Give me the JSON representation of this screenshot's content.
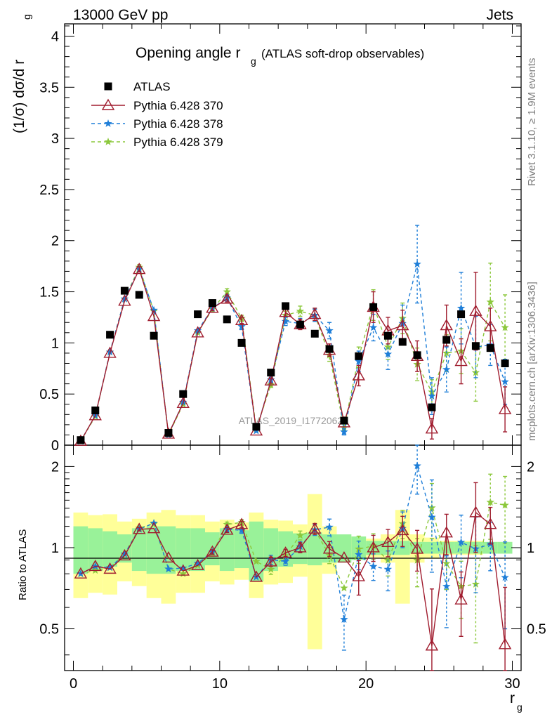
{
  "header": {
    "energy_label": "13000 GeV pp",
    "process_label": "Jets"
  },
  "side_labels": {
    "rivet": "Rivet 3.1.10, ≥ 1.9M events",
    "mcplots": "mcplots.cern.ch [arXiv:1306.3436]"
  },
  "chart_data": {
    "type": "scatter",
    "title": "Opening angle r_g (ATLAS soft-drop observables)",
    "title_main": "Opening angle r",
    "title_sub": "g",
    "title_tail": "(ATLAS soft-drop observables)",
    "watermark": "ATLAS_2019_I1772062",
    "xlabel": "r_g",
    "xlabel_main": "r",
    "xlabel_sub": "g",
    "ylabel_main": "(1/σ) dσ/d r_g",
    "ylabel_main_a": "(1/σ) dσ/d r",
    "ylabel_main_sub": "g",
    "ylabel_ratio": "Ratio to ATLAS",
    "xlim": [
      -0.6,
      30.6
    ],
    "ylim_main": [
      0,
      4.12
    ],
    "ylim_ratio": [
      0.35,
      2.4
    ],
    "x_ticks": [
      "0",
      "10",
      "20",
      "30"
    ],
    "main_y_ticks": [
      "0",
      "0.5",
      "1",
      "1.5",
      "2",
      "2.5",
      "3",
      "3.5",
      "4"
    ],
    "ratio_y_ticks": [
      "0.5",
      "1",
      "2"
    ],
    "legend_position": "top-left",
    "x": [
      0.5,
      1.5,
      2.5,
      3.5,
      4.5,
      5.5,
      6.5,
      7.5,
      8.5,
      9.5,
      10.5,
      11.5,
      12.5,
      13.5,
      14.5,
      15.5,
      16.5,
      17.5,
      18.5,
      19.5,
      20.5,
      21.5,
      22.5,
      23.5,
      24.5,
      25.5,
      26.5,
      27.5,
      28.5,
      29.5
    ],
    "series": [
      {
        "name": "ATLAS",
        "color": "#000000",
        "marker": "square",
        "values": [
          0.05,
          0.34,
          1.08,
          1.51,
          1.47,
          1.07,
          0.12,
          0.5,
          1.28,
          1.39,
          1.23,
          1.0,
          0.18,
          0.71,
          1.36,
          1.18,
          1.09,
          0.94,
          0.24,
          0.87,
          1.35,
          1.07,
          1.01,
          0.88,
          0.37,
          1.03,
          1.28,
          0.97,
          0.95,
          0.8
        ],
        "band_inner": [
          0.2,
          0.18,
          0.15,
          0.12,
          0.18,
          0.2,
          0.2,
          0.18,
          0.18,
          0.14,
          0.18,
          0.16,
          0.25,
          0.18,
          0.15,
          0.13,
          0.14,
          0.12,
          0.12,
          0.1,
          0.06,
          0.06,
          0.06,
          0.05,
          0.05,
          0.05,
          0.05,
          0.05,
          0.05,
          0.05
        ],
        "band_outer": [
          0.35,
          0.32,
          0.33,
          0.25,
          0.28,
          0.35,
          0.38,
          0.32,
          0.32,
          0.25,
          0.27,
          0.24,
          0.35,
          0.27,
          0.26,
          0.22,
          0.58,
          0.2,
          0.1,
          0.1,
          0.08,
          0.12,
          0.38,
          0.12,
          0.09,
          0.06,
          0.06,
          0.06,
          0.05,
          0.05
        ]
      },
      {
        "name": "Pythia 6.428 370",
        "color": "#a01c2e",
        "marker": "open-triangle",
        "line": "solid",
        "values": [
          0.04,
          0.29,
          0.9,
          1.41,
          1.72,
          1.26,
          0.11,
          0.41,
          1.1,
          1.34,
          1.43,
          1.22,
          0.14,
          0.63,
          1.3,
          1.18,
          1.28,
          0.93,
          0.22,
          0.68,
          1.35,
          1.12,
          1.17,
          0.87,
          0.16,
          1.17,
          0.82,
          1.31,
          1.16,
          0.35
        ],
        "errors": [
          0.005,
          0.01,
          0.015,
          0.02,
          0.025,
          0.02,
          0.005,
          0.01,
          0.02,
          0.025,
          0.03,
          0.03,
          0.01,
          0.025,
          0.04,
          0.05,
          0.06,
          0.06,
          0.02,
          0.1,
          0.15,
          0.13,
          0.15,
          0.15,
          0.1,
          0.2,
          0.22,
          0.38,
          0.18,
          0.22
        ]
      },
      {
        "name": "Pythia 6.428 378",
        "color": "#1e7ed8",
        "marker": "star",
        "line": "dashed",
        "values": [
          0.04,
          0.29,
          0.91,
          1.43,
          1.72,
          1.32,
          0.1,
          0.42,
          1.12,
          1.34,
          1.44,
          1.16,
          0.14,
          0.64,
          1.21,
          1.19,
          1.27,
          1.12,
          0.13,
          0.82,
          1.15,
          0.89,
          1.19,
          1.77,
          0.48,
          0.74,
          1.34,
          0.96,
          0.98,
          0.62
        ],
        "errors": [
          0.005,
          0.01,
          0.015,
          0.02,
          0.025,
          0.02,
          0.005,
          0.01,
          0.02,
          0.025,
          0.03,
          0.03,
          0.01,
          0.025,
          0.04,
          0.05,
          0.06,
          0.08,
          0.03,
          0.1,
          0.13,
          0.15,
          0.18,
          0.38,
          0.18,
          0.22,
          0.35,
          0.3,
          0.2,
          0.22
        ]
      },
      {
        "name": "Pythia 6.428 379",
        "color": "#8cc83c",
        "marker": "star",
        "line": "dashed",
        "values": [
          0.04,
          0.28,
          0.91,
          1.43,
          1.74,
          1.31,
          0.1,
          0.4,
          1.1,
          1.33,
          1.5,
          1.24,
          0.16,
          0.59,
          1.27,
          1.31,
          1.27,
          0.88,
          0.17,
          0.86,
          1.37,
          0.96,
          1.24,
          0.79,
          0.52,
          0.9,
          0.92,
          0.71,
          1.4,
          1.15
        ],
        "errors": [
          0.005,
          0.01,
          0.015,
          0.02,
          0.025,
          0.02,
          0.005,
          0.01,
          0.02,
          0.025,
          0.03,
          0.03,
          0.01,
          0.025,
          0.04,
          0.05,
          0.06,
          0.06,
          0.02,
          0.1,
          0.15,
          0.12,
          0.15,
          0.16,
          0.12,
          0.18,
          0.22,
          0.28,
          0.38,
          0.32
        ]
      }
    ]
  }
}
